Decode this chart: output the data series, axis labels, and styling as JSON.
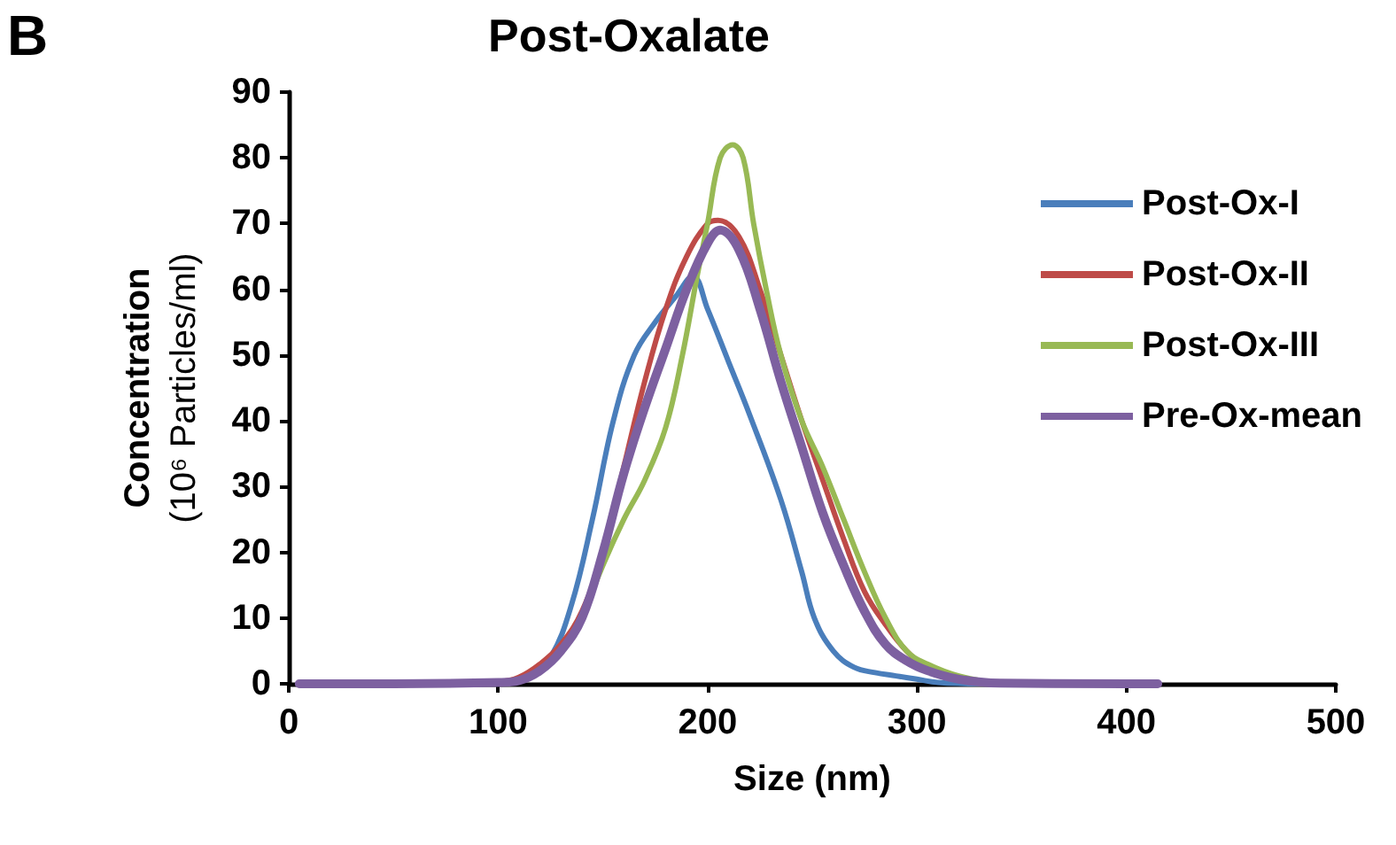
{
  "chart_data": {
    "type": "line",
    "title": "Post-Oxalate",
    "xlabel": "Size (nm)",
    "ylabel": "Concentration\n(10⁶ Particles/ml)",
    "annotations": [
      "B"
    ],
    "xlim": [
      0,
      500
    ],
    "xticks": [
      0,
      100,
      200,
      300,
      400,
      500
    ],
    "ylim": [
      0,
      90
    ],
    "yticks": [
      0,
      10,
      20,
      30,
      40,
      50,
      60,
      70,
      80,
      90
    ],
    "grid": false,
    "legend": "top right",
    "marker": "none",
    "line_style": "solid",
    "series": [
      {
        "name": "Post-Ox-I",
        "color": "#4a7ebb",
        "x": [
          5,
          50,
          100,
          115,
          125,
          135,
          145,
          155,
          165,
          175,
          185,
          193,
          200,
          210,
          220,
          235,
          245,
          251,
          260,
          270,
          280,
          290,
          300,
          310,
          330,
          415
        ],
        "values": [
          0,
          0,
          0.2,
          1,
          4,
          12,
          25,
          40,
          50,
          55,
          59,
          62,
          57,
          49,
          41,
          28,
          17,
          10,
          5,
          2.5,
          1.7,
          1.2,
          0.7,
          0.2,
          0,
          0
        ]
      },
      {
        "name": "Post-Ox-II",
        "color": "#be4b48",
        "x": [
          5,
          50,
          100,
          110,
          120,
          130,
          140,
          150,
          160,
          170,
          180,
          190,
          200,
          205,
          215,
          225,
          235,
          245,
          255,
          265,
          275,
          285,
          295,
          305,
          320
        ],
        "values": [
          0,
          0,
          0.3,
          1,
          3,
          6,
          11,
          20,
          33,
          46,
          57,
          65,
          70,
          70.5,
          68,
          60,
          50,
          40,
          31,
          22,
          14,
          9,
          5,
          2.5,
          1
        ]
      },
      {
        "name": "Post-Ox-III",
        "color": "#98b954",
        "x": [
          140,
          150,
          160,
          170,
          180,
          188,
          195,
          200,
          206,
          212,
          217,
          222,
          228,
          235,
          245,
          255,
          265,
          275,
          285,
          295,
          305,
          320,
          340,
          415
        ],
        "values": [
          10,
          18,
          25,
          31,
          39,
          50,
          62,
          70,
          80,
          82,
          80,
          70,
          60,
          50,
          40,
          33,
          25,
          17,
          10,
          5,
          3,
          1.2,
          0.2,
          0
        ]
      },
      {
        "name": "Pre-Ox-mean",
        "color": "#7d60a0",
        "x": [
          5,
          50,
          100,
          110,
          120,
          130,
          140,
          150,
          160,
          170,
          180,
          190,
          200,
          206,
          215,
          225,
          235,
          245,
          255,
          265,
          275,
          285,
          295,
          305,
          320,
          340,
          415
        ],
        "values": [
          0,
          0,
          0.2,
          0.5,
          2,
          5,
          10,
          20,
          32,
          42,
          51,
          60,
          67,
          69,
          66,
          57,
          46,
          36,
          26,
          18,
          11,
          6,
          3.5,
          2,
          0.7,
          0.1,
          0
        ]
      }
    ]
  }
}
